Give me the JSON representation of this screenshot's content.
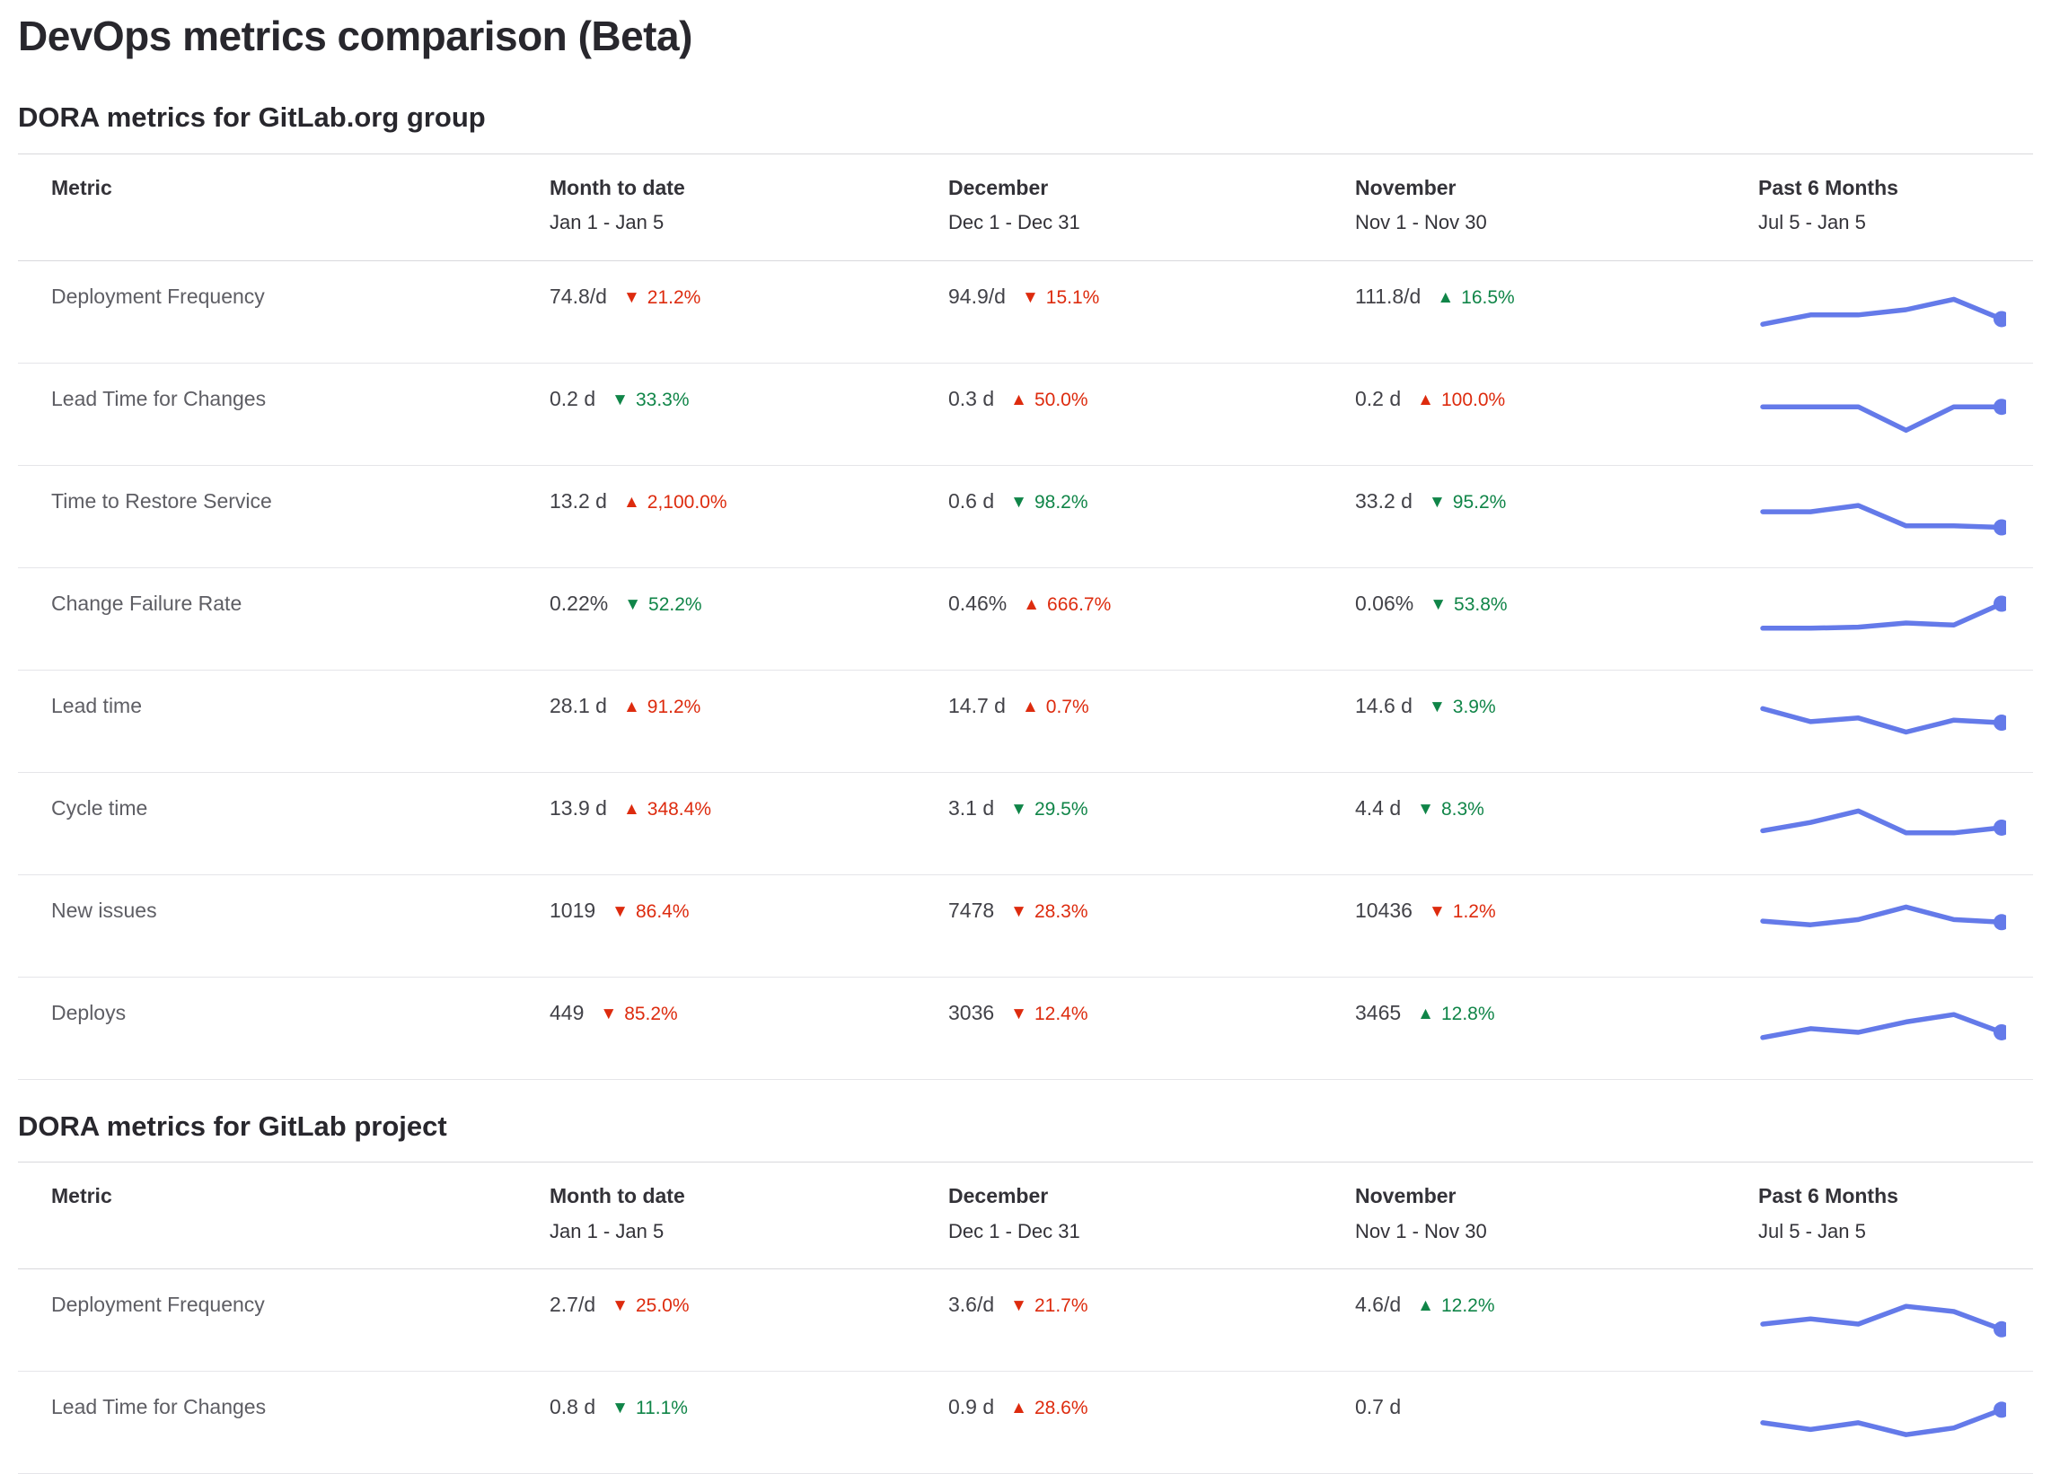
{
  "page": {
    "title": "DevOps metrics comparison (Beta)"
  },
  "icons": {
    "up": "▲",
    "down": "▼"
  },
  "colors": {
    "increase_bad": "#dd2b0e",
    "decrease_good": "#108548",
    "sparkline": "#647ae9",
    "metric_label": "#5e5e64",
    "value_text": "#424248"
  },
  "sections": [
    {
      "heading": "DORA metrics for GitLab.org group",
      "columns": [
        {
          "label": "Metric",
          "sublabel": ""
        },
        {
          "label": "Month to date",
          "sublabel": "Jan 1 - Jan 5"
        },
        {
          "label": "December",
          "sublabel": "Dec 1 - Dec 31"
        },
        {
          "label": "November",
          "sublabel": "Nov 1 - Nov 30"
        },
        {
          "label": "Past 6 Months",
          "sublabel": "Jul 5 - Jan 5"
        }
      ],
      "rows": [
        {
          "metric": "Deployment Frequency",
          "cells": [
            {
              "value": "74.8/d",
              "change": "21.2%",
              "direction": "down",
              "color": "red"
            },
            {
              "value": "94.9/d",
              "change": "15.1%",
              "direction": "down",
              "color": "red"
            },
            {
              "value": "111.8/d",
              "change": "16.5%",
              "direction": "up",
              "color": "green"
            }
          ],
          "sparkline": [
            0.22,
            0.4,
            0.4,
            0.5,
            0.7,
            0.32
          ]
        },
        {
          "metric": "Lead Time for Changes",
          "cells": [
            {
              "value": "0.2 d",
              "change": "33.3%",
              "direction": "down",
              "color": "green"
            },
            {
              "value": "0.3 d",
              "change": "50.0%",
              "direction": "up",
              "color": "red"
            },
            {
              "value": "0.2 d",
              "change": "100.0%",
              "direction": "up",
              "color": "red"
            }
          ],
          "sparkline": [
            0.6,
            0.6,
            0.6,
            0.15,
            0.6,
            0.6
          ]
        },
        {
          "metric": "Time to Restore Service",
          "cells": [
            {
              "value": "13.2 d",
              "change": "2,100.0%",
              "direction": "up",
              "color": "red"
            },
            {
              "value": "0.6 d",
              "change": "98.2%",
              "direction": "down",
              "color": "green"
            },
            {
              "value": "33.2 d",
              "change": "95.2%",
              "direction": "down",
              "color": "green"
            }
          ],
          "sparkline": [
            0.55,
            0.55,
            0.67,
            0.28,
            0.28,
            0.25
          ]
        },
        {
          "metric": "Change Failure Rate",
          "cells": [
            {
              "value": "0.22%",
              "change": "52.2%",
              "direction": "down",
              "color": "green"
            },
            {
              "value": "0.46%",
              "change": "666.7%",
              "direction": "up",
              "color": "red"
            },
            {
              "value": "0.06%",
              "change": "53.8%",
              "direction": "down",
              "color": "green"
            }
          ],
          "sparkline": [
            0.28,
            0.28,
            0.3,
            0.38,
            0.34,
            0.75
          ]
        },
        {
          "metric": "Lead time",
          "cells": [
            {
              "value": "28.1 d",
              "change": "91.2%",
              "direction": "up",
              "color": "red"
            },
            {
              "value": "14.7 d",
              "change": "0.7%",
              "direction": "up",
              "color": "red"
            },
            {
              "value": "14.6 d",
              "change": "3.9%",
              "direction": "down",
              "color": "green"
            }
          ],
          "sparkline": [
            0.7,
            0.45,
            0.52,
            0.25,
            0.48,
            0.43
          ]
        },
        {
          "metric": "Cycle time",
          "cells": [
            {
              "value": "13.9 d",
              "change": "348.4%",
              "direction": "up",
              "color": "red"
            },
            {
              "value": "3.1 d",
              "change": "29.5%",
              "direction": "down",
              "color": "green"
            },
            {
              "value": "4.4 d",
              "change": "8.3%",
              "direction": "down",
              "color": "green"
            }
          ],
          "sparkline": [
            0.32,
            0.48,
            0.7,
            0.28,
            0.28,
            0.38
          ]
        },
        {
          "metric": "New issues",
          "cells": [
            {
              "value": "1019",
              "change": "86.4%",
              "direction": "down",
              "color": "red"
            },
            {
              "value": "7478",
              "change": "28.3%",
              "direction": "down",
              "color": "red"
            },
            {
              "value": "10436",
              "change": "1.2%",
              "direction": "down",
              "color": "red"
            }
          ],
          "sparkline": [
            0.55,
            0.48,
            0.58,
            0.82,
            0.58,
            0.53
          ]
        },
        {
          "metric": "Deploys",
          "cells": [
            {
              "value": "449",
              "change": "85.2%",
              "direction": "down",
              "color": "red"
            },
            {
              "value": "3036",
              "change": "12.4%",
              "direction": "down",
              "color": "red"
            },
            {
              "value": "3465",
              "change": "12.8%",
              "direction": "up",
              "color": "green"
            }
          ],
          "sparkline": [
            0.28,
            0.45,
            0.38,
            0.58,
            0.72,
            0.38
          ]
        }
      ]
    },
    {
      "heading": "DORA metrics for GitLab project",
      "columns": [
        {
          "label": "Metric",
          "sublabel": ""
        },
        {
          "label": "Month to date",
          "sublabel": "Jan 1 - Jan 5"
        },
        {
          "label": "December",
          "sublabel": "Dec 1 - Dec 31"
        },
        {
          "label": "November",
          "sublabel": "Nov 1 - Nov 30"
        },
        {
          "label": "Past 6 Months",
          "sublabel": "Jul 5 - Jan 5"
        }
      ],
      "rows": [
        {
          "metric": "Deployment Frequency",
          "cells": [
            {
              "value": "2.7/d",
              "change": "25.0%",
              "direction": "down",
              "color": "red"
            },
            {
              "value": "3.6/d",
              "change": "21.7%",
              "direction": "down",
              "color": "red"
            },
            {
              "value": "4.6/d",
              "change": "12.2%",
              "direction": "up",
              "color": "green"
            }
          ],
          "sparkline": [
            0.38,
            0.48,
            0.38,
            0.72,
            0.62,
            0.28
          ]
        },
        {
          "metric": "Lead Time for Changes",
          "cells": [
            {
              "value": "0.8 d",
              "change": "11.1%",
              "direction": "down",
              "color": "green"
            },
            {
              "value": "0.9 d",
              "change": "28.6%",
              "direction": "up",
              "color": "red"
            },
            {
              "value": "0.7 d",
              "change": "",
              "direction": "none",
              "color": ""
            }
          ],
          "sparkline": [
            0.45,
            0.32,
            0.45,
            0.22,
            0.35,
            0.7
          ]
        }
      ]
    }
  ]
}
